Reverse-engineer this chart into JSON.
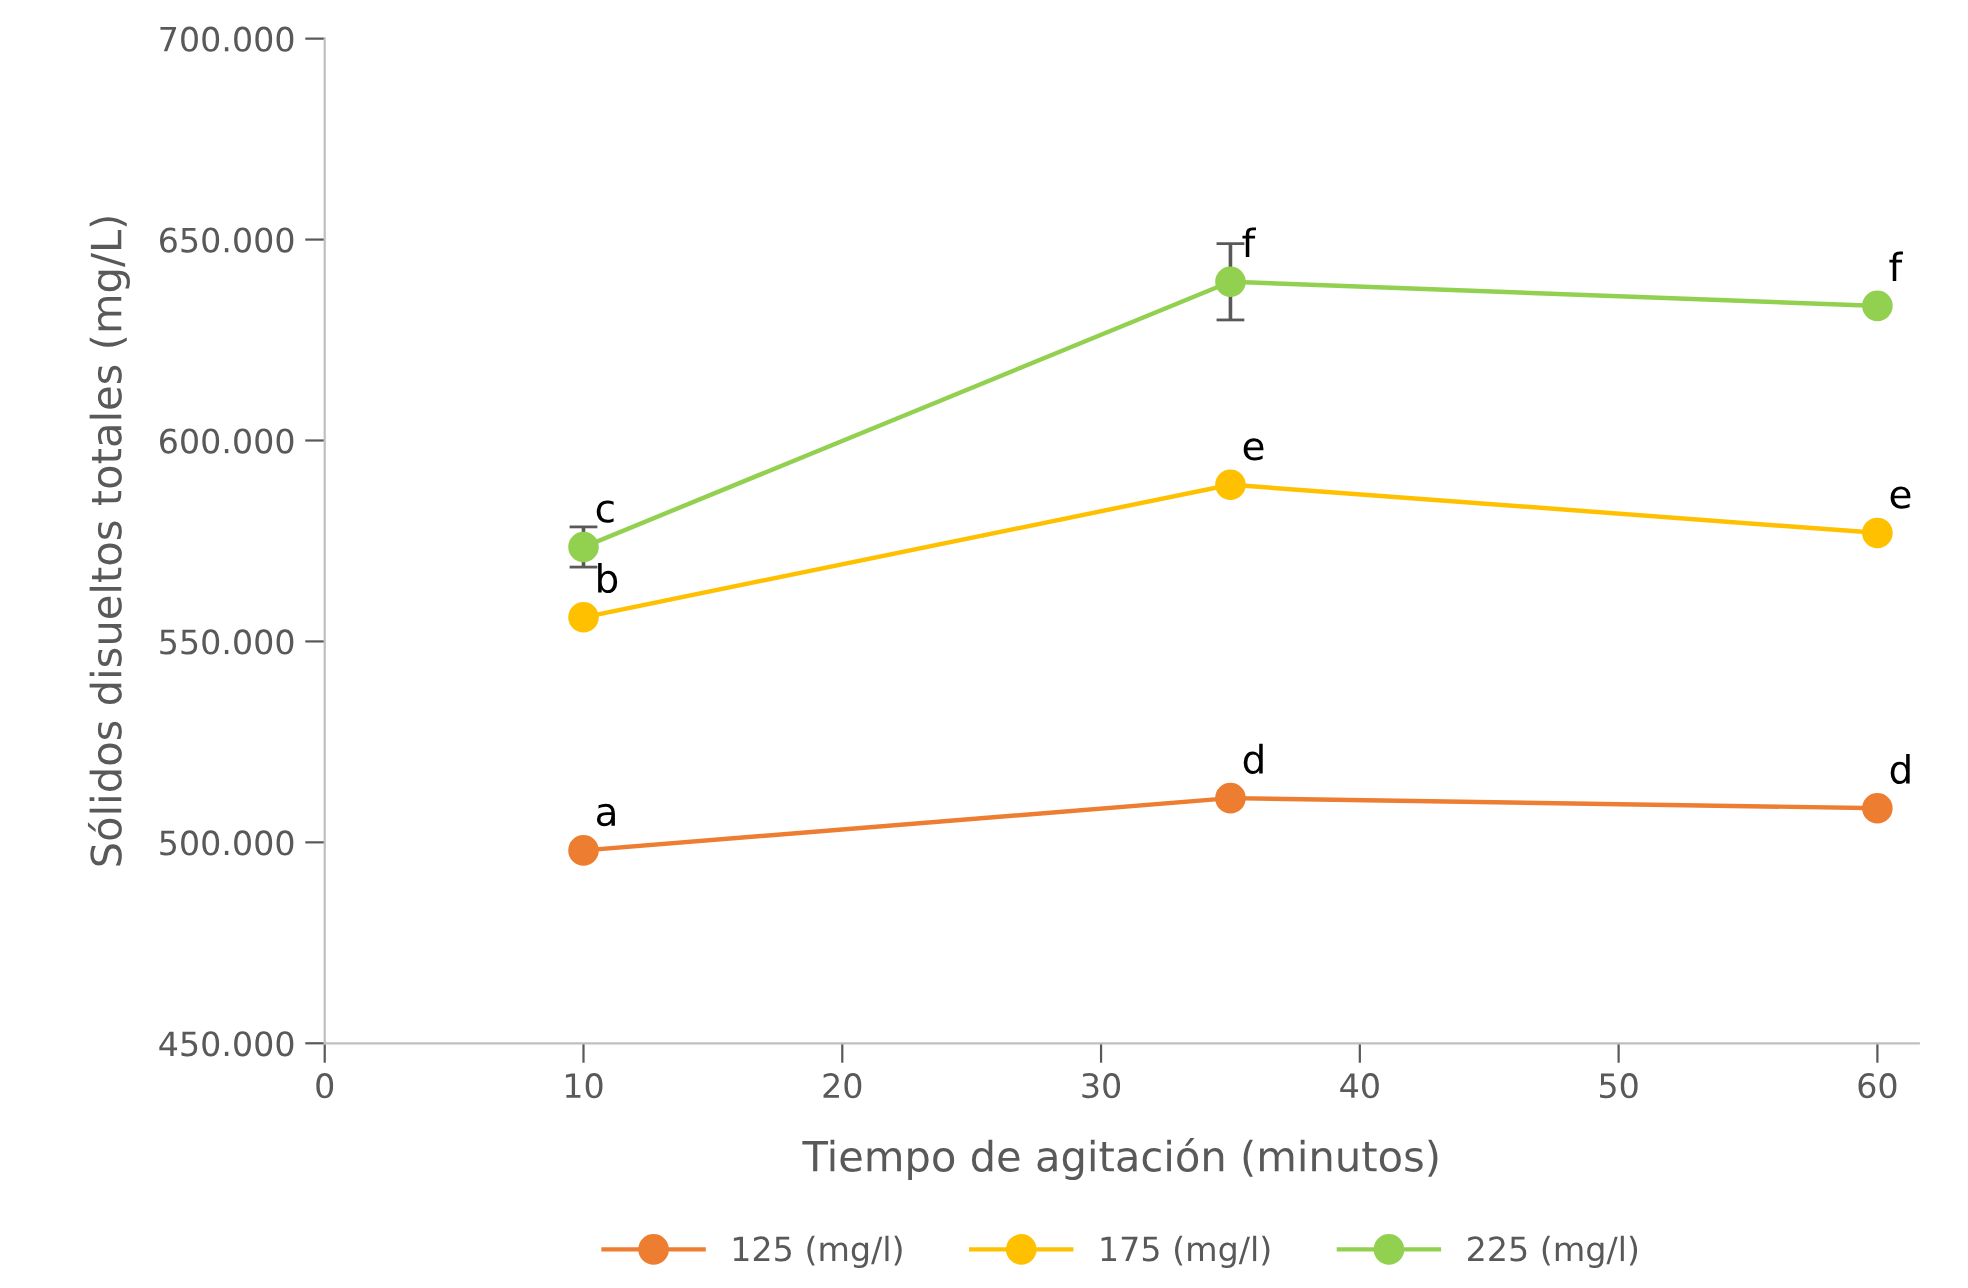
{
  "chart_data": {
    "type": "line",
    "xlabel": "Tiempo de agitación (minutos)",
    "ylabel": "Sólidos disueltos totales (mg/L)",
    "xlim": [
      0,
      61.6
    ],
    "xticks": [
      0,
      10,
      20,
      30,
      40,
      50,
      60
    ],
    "ylim": [
      450000,
      700000
    ],
    "yticks": [
      {
        "value": 450000,
        "label": "450.000"
      },
      {
        "value": 500000,
        "label": "500.000"
      },
      {
        "value": 550000,
        "label": "550.000"
      },
      {
        "value": 600000,
        "label": "600.000"
      },
      {
        "value": 650000,
        "label": "650.000"
      },
      {
        "value": 700000,
        "label": "700.000"
      }
    ],
    "grid": false,
    "legend": "bottom",
    "marker": "circle",
    "line_style": "solid",
    "x": [
      10,
      35,
      60
    ],
    "series": [
      {
        "name": "125 (mg/l)",
        "color": "#ed7d31",
        "values": [
          498000,
          511000,
          508500
        ]
      },
      {
        "name": "175 (mg/l)",
        "color": "#ffc000",
        "values": [
          556000,
          589000,
          577000
        ]
      },
      {
        "name": "225 (mg/l)",
        "color": "#92d050",
        "values": [
          573500,
          639500,
          633500
        ],
        "errors": [
          5000,
          9500,
          null
        ]
      }
    ],
    "annotations": [
      {
        "text": "a",
        "x": 10,
        "y": 498000
      },
      {
        "text": "d",
        "x": 35,
        "y": 511000
      },
      {
        "text": "d",
        "x": 60,
        "y": 508500
      },
      {
        "text": "b",
        "x": 10,
        "y": 556000
      },
      {
        "text": "e",
        "x": 35,
        "y": 589000
      },
      {
        "text": "e",
        "x": 60,
        "y": 577000
      },
      {
        "text": "c",
        "x": 10,
        "y": 573500
      },
      {
        "text": "f",
        "x": 35,
        "y": 639500
      },
      {
        "text": "f",
        "x": 60,
        "y": 633500
      }
    ]
  }
}
